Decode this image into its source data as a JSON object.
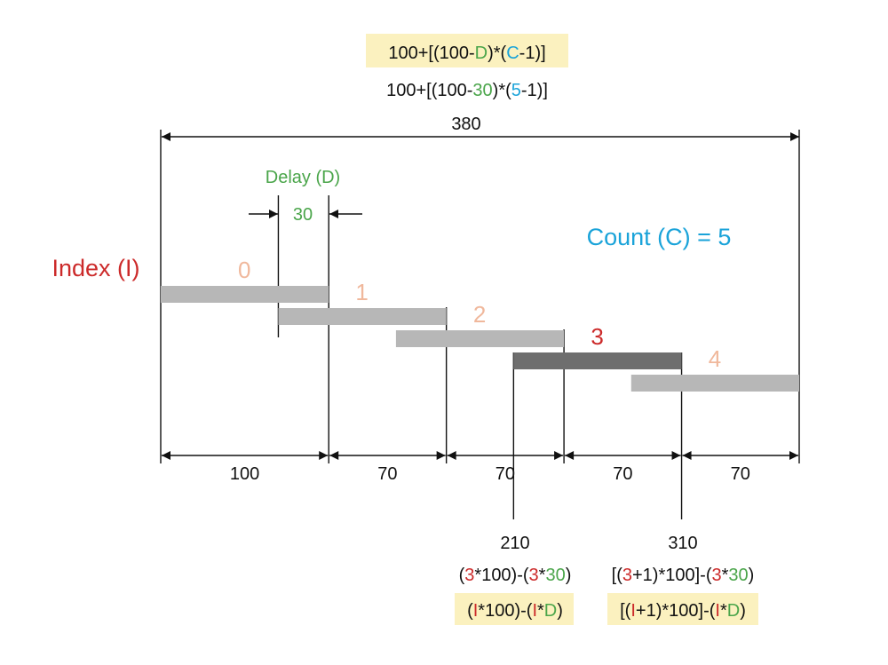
{
  "colors": {
    "red": "#cc2a2a",
    "green": "#4aa54a",
    "cyan": "#1aa3d9",
    "peach": "#f0b89c",
    "bar": "#b7b7b7",
    "bar_active": "#6e6e6e",
    "highlight": "#fbf1bf"
  },
  "formula_total": [
    {
      "t": "100+[(100-",
      "c": "black"
    },
    {
      "t": "D",
      "c": "green"
    },
    {
      "t": ")*(",
      "c": "black"
    },
    {
      "t": "C",
      "c": "cyan"
    },
    {
      "t": "-1)]",
      "c": "black"
    }
  ],
  "formula_total_values": [
    {
      "t": "100+[(100-",
      "c": "black"
    },
    {
      "t": "30",
      "c": "green"
    },
    {
      "t": ")*(",
      "c": "black"
    },
    {
      "t": "5",
      "c": "cyan"
    },
    {
      "t": "-1)]",
      "c": "black"
    }
  ],
  "total_length": "380",
  "delay_label": "Delay (D)",
  "delay_value": "30",
  "count_label": "Count (C) = 5",
  "index_label": "Index (I)",
  "bars": [
    {
      "index": "0",
      "start": 0,
      "end": 100,
      "active": false
    },
    {
      "index": "1",
      "start": 70,
      "end": 170,
      "active": false
    },
    {
      "index": "2",
      "start": 140,
      "end": 240,
      "active": false
    },
    {
      "index": "3",
      "start": 210,
      "end": 310,
      "active": true
    },
    {
      "index": "4",
      "start": 280,
      "end": 380,
      "active": false
    }
  ],
  "segments": [
    "100",
    "70",
    "70",
    "70",
    "70"
  ],
  "marker_left": {
    "value": "210",
    "formula_values": [
      {
        "t": "(",
        "c": "black"
      },
      {
        "t": "3",
        "c": "red"
      },
      {
        "t": "*100)-(",
        "c": "black"
      },
      {
        "t": "3",
        "c": "red"
      },
      {
        "t": "*",
        "c": "black"
      },
      {
        "t": "30",
        "c": "green"
      },
      {
        "t": ")",
        "c": "black"
      }
    ],
    "formula_vars": [
      {
        "t": "(",
        "c": "black"
      },
      {
        "t": "I",
        "c": "red"
      },
      {
        "t": "*100)-(",
        "c": "black"
      },
      {
        "t": "I",
        "c": "red"
      },
      {
        "t": "*",
        "c": "black"
      },
      {
        "t": "D",
        "c": "green"
      },
      {
        "t": ")",
        "c": "black"
      }
    ]
  },
  "marker_right": {
    "value": "310",
    "formula_values": [
      {
        "t": "[(",
        "c": "black"
      },
      {
        "t": "3",
        "c": "red"
      },
      {
        "t": "+1)*100]-(",
        "c": "black"
      },
      {
        "t": "3",
        "c": "red"
      },
      {
        "t": "*",
        "c": "black"
      },
      {
        "t": "30",
        "c": "green"
      },
      {
        "t": ")",
        "c": "black"
      }
    ],
    "formula_vars": [
      {
        "t": "[(",
        "c": "black"
      },
      {
        "t": "I",
        "c": "red"
      },
      {
        "t": "+1)*100]-(",
        "c": "black"
      },
      {
        "t": "I",
        "c": "red"
      },
      {
        "t": "*",
        "c": "black"
      },
      {
        "t": "D",
        "c": "green"
      },
      {
        "t": ")",
        "c": "black"
      }
    ]
  }
}
